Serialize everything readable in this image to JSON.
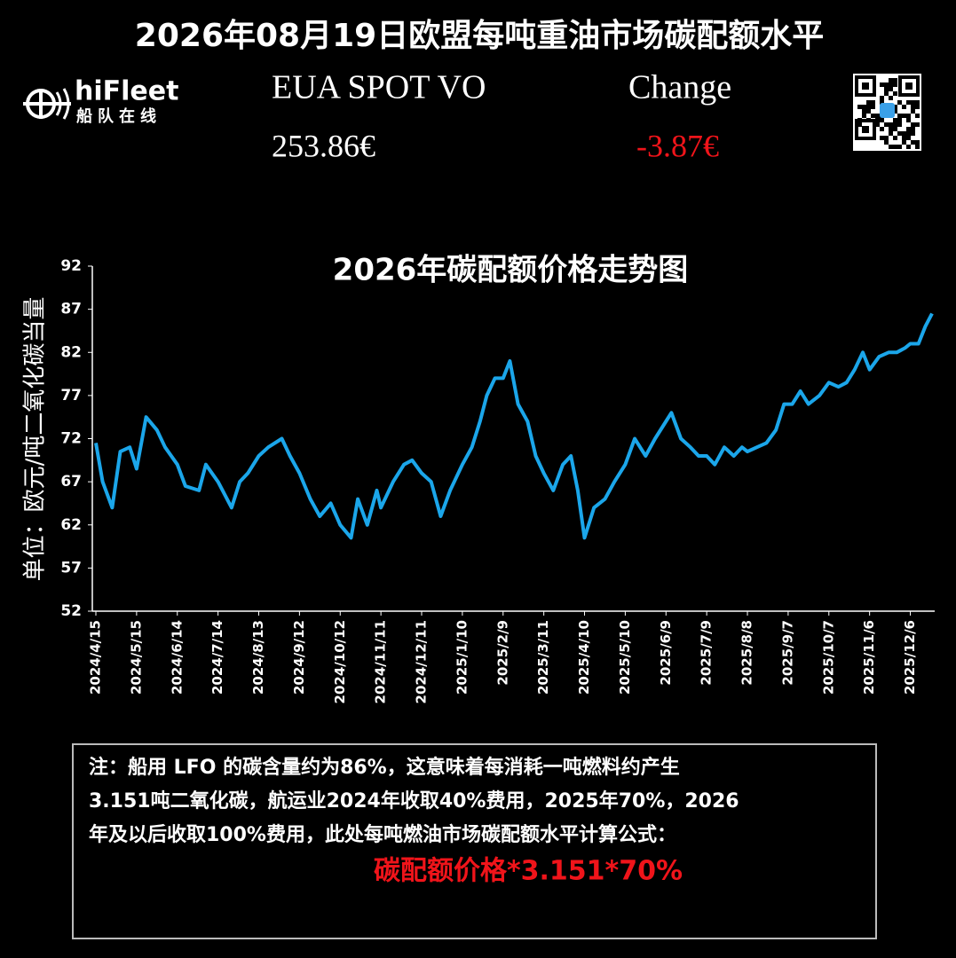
{
  "header": {
    "title": "2026年08月19日欧盟每吨重油市场碳配额水平",
    "logo_name": "hiFleet",
    "logo_sub": "船队在线",
    "spot_label": "EUA SPOT VO",
    "spot_value": "253.86€",
    "change_label": "Change",
    "change_value": "-3.87€"
  },
  "chart_data": {
    "type": "line",
    "title": "2026年碳配额价格走势图",
    "y_label": "单位：欧元/吨二氧化碳当量",
    "color": "#1ba6ea",
    "x": [
      "2024/4/15",
      "2024/4/20",
      "2024/4/27",
      "2024/5/3",
      "2024/5/10",
      "2024/5/15",
      "2024/5/22",
      "2024/5/30",
      "2024/6/5",
      "2024/6/14",
      "2024/6/20",
      "2024/6/30",
      "2024/7/5",
      "2024/7/14",
      "2024/7/24",
      "2024/7/30",
      "2024/8/5",
      "2024/8/13",
      "2024/8/20",
      "2024/8/30",
      "2024/9/5",
      "2024/9/12",
      "2024/9/20",
      "2024/9/27",
      "2024/10/5",
      "2024/10/12",
      "2024/10/20",
      "2024/10/25",
      "2024/11/1",
      "2024/11/8",
      "2024/11/11",
      "2024/11/20",
      "2024/11/28",
      "2024/12/4",
      "2024/12/11",
      "2024/12/18",
      "2024/12/25",
      "2025/1/1",
      "2025/1/10",
      "2025/1/17",
      "2025/1/23",
      "2025/1/28",
      "2025/2/3",
      "2025/2/9",
      "2025/2/14",
      "2025/2/20",
      "2025/2/27",
      "2025/3/5",
      "2025/3/11",
      "2025/3/18",
      "2025/3/25",
      "2025/3/31",
      "2025/4/5",
      "2025/4/10",
      "2025/4/17",
      "2025/4/25",
      "2025/5/2",
      "2025/5/10",
      "2025/5/17",
      "2025/5/25",
      "2025/6/1",
      "2025/6/9",
      "2025/6/13",
      "2025/6/20",
      "2025/6/27",
      "2025/7/3",
      "2025/7/9",
      "2025/7/15",
      "2025/7/22",
      "2025/7/29",
      "2025/8/4",
      "2025/8/8",
      "2025/8/15",
      "2025/8/22",
      "2025/8/29",
      "2025/9/4",
      "2025/9/10",
      "2025/9/16",
      "2025/9/22",
      "2025/9/30",
      "2025/10/7",
      "2025/10/14",
      "2025/10/20",
      "2025/10/26",
      "2025/11/1",
      "2025/11/6",
      "2025/11/13",
      "2025/11/20",
      "2025/11/26",
      "2025/12/2",
      "2025/12/6",
      "2025/12/12",
      "2025/12/17",
      "2025/12/22"
    ],
    "values": [
      71.5,
      67,
      64,
      70.5,
      71,
      68.5,
      74.5,
      73,
      71,
      69,
      66.5,
      66,
      69,
      67,
      64,
      67,
      68,
      70,
      71,
      72,
      70,
      68,
      65,
      63,
      64.5,
      62,
      60.5,
      65,
      62,
      66,
      64,
      67,
      69,
      69.5,
      68,
      67,
      63,
      66,
      69,
      71,
      74,
      77,
      79,
      79,
      81,
      76,
      74,
      70,
      68,
      66,
      69,
      70,
      66,
      60.5,
      64,
      65,
      67,
      69,
      72,
      70,
      72,
      74,
      75,
      72,
      71,
      70,
      70,
      69,
      71,
      70,
      71,
      70.5,
      71,
      71.5,
      73,
      76,
      76,
      77.5,
      76,
      77,
      78.5,
      78,
      78.5,
      80,
      82,
      80,
      81.5,
      82,
      82,
      82.5,
      83,
      83,
      85,
      86.5
    ],
    "xlim": [
      "2024/4/15",
      "2025/12/22"
    ],
    "xticks": [
      "2024/4/15",
      "2024/5/15",
      "2024/6/14",
      "2024/7/14",
      "2024/8/13",
      "2024/9/12",
      "2024/10/12",
      "2024/11/11",
      "2024/12/11",
      "2025/1/10",
      "2025/2/9",
      "2025/3/11",
      "2025/4/10",
      "2025/5/10",
      "2025/6/9",
      "2025/7/9",
      "2025/8/8",
      "2025/9/7",
      "2025/10/7",
      "2025/11/6",
      "2025/12/6"
    ],
    "ylim": [
      52,
      92
    ],
    "yticks": [
      52,
      57,
      62,
      67,
      72,
      77,
      82,
      87,
      92
    ]
  },
  "note": {
    "lines": [
      "注：船用 LFO 的碳含量约为86%，这意味着每消耗一吨燃料约产生",
      "3.151吨二氧化碳，航运业2024年收取40%费用，2025年70%，2026",
      "年及以后收取100%费用，此处每吨燃油市场碳配额水平计算公式："
    ],
    "formula": "碳配额价格*3.151*70%"
  }
}
